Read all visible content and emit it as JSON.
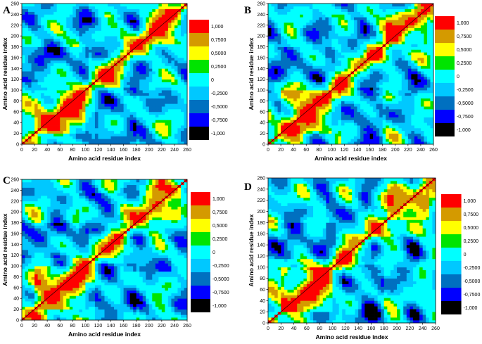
{
  "chart_data": [
    {
      "type": "heatmap",
      "panel_label": "A",
      "title": "",
      "xlabel": "Amino acid residue index",
      "ylabel": "Amino acid residue index",
      "xlim": [
        0,
        260
      ],
      "ylim": [
        0,
        260
      ],
      "x_ticks": [
        "0",
        "20",
        "40",
        "60",
        "80",
        "100",
        "120",
        "140",
        "160",
        "180",
        "200",
        "220",
        "240",
        "260"
      ],
      "y_ticks": [
        "0",
        "20",
        "40",
        "60",
        "80",
        "100",
        "120",
        "140",
        "160",
        "180",
        "200",
        "220",
        "240",
        "260"
      ],
      "legend_levels": [
        "1,000",
        "0,7500",
        "0,5000",
        "0,2500",
        "0",
        "-0,2500",
        "-0,5000",
        "-0,7500",
        "-1,000"
      ],
      "legend_colors": [
        "#ff0000",
        "#d49a00",
        "#ffff00",
        "#00e400",
        "#00ffff",
        "#00c8ff",
        "#0070c0",
        "#0000ff",
        "#000000"
      ],
      "variant": 1
    },
    {
      "type": "heatmap",
      "panel_label": "B",
      "title": "",
      "xlabel": "Amino acid residue index",
      "ylabel": "Amino acid residue index",
      "xlim": [
        0,
        260
      ],
      "ylim": [
        0,
        260
      ],
      "x_ticks": [
        "0",
        "20",
        "40",
        "60",
        "80",
        "100",
        "120",
        "140",
        "160",
        "180",
        "200",
        "220",
        "240",
        "260"
      ],
      "y_ticks": [
        "0",
        "20",
        "40",
        "60",
        "80",
        "100",
        "120",
        "140",
        "160",
        "180",
        "200",
        "220",
        "240",
        "260"
      ],
      "legend_levels": [
        "1,000",
        "0,7500",
        "0,5000",
        "0,2500",
        "0",
        "-0,2500",
        "-0,5000",
        "-0,7500",
        "-1,000"
      ],
      "legend_colors": [
        "#ff0000",
        "#d49a00",
        "#ffff00",
        "#00e400",
        "#00ffff",
        "#00c8ff",
        "#0070c0",
        "#0000ff",
        "#000000"
      ],
      "variant": 2
    },
    {
      "type": "heatmap",
      "panel_label": "C",
      "title": "",
      "xlabel": "Amino acid residue index",
      "ylabel": "Amino acid residue index",
      "xlim": [
        0,
        260
      ],
      "ylim": [
        0,
        260
      ],
      "x_ticks": [
        "0",
        "20",
        "40",
        "60",
        "80",
        "100",
        "120",
        "140",
        "160",
        "180",
        "200",
        "220",
        "240",
        "260"
      ],
      "y_ticks": [
        "0",
        "20",
        "40",
        "60",
        "80",
        "100",
        "120",
        "140",
        "160",
        "180",
        "200",
        "220",
        "240",
        "260"
      ],
      "legend_levels": [
        "1,000",
        "0,7500",
        "0,5000",
        "0,2500",
        "0",
        "-0,2500",
        "-0,5000",
        "-0,7500",
        "-1,000"
      ],
      "legend_colors": [
        "#ff0000",
        "#d49a00",
        "#ffff00",
        "#00e400",
        "#00ffff",
        "#00c8ff",
        "#0070c0",
        "#0000ff",
        "#000000"
      ],
      "variant": 3
    },
    {
      "type": "heatmap",
      "panel_label": "D",
      "title": "",
      "xlabel": "Amino acid residue index",
      "ylabel": "Amino acid residue index",
      "xlim": [
        0,
        260
      ],
      "ylim": [
        0,
        260
      ],
      "x_ticks": [
        "0",
        "20",
        "40",
        "60",
        "80",
        "100",
        "120",
        "140",
        "160",
        "180",
        "200",
        "220",
        "240",
        "260"
      ],
      "y_ticks": [
        "0",
        "20",
        "40",
        "60",
        "80",
        "100",
        "120",
        "140",
        "160",
        "180",
        "200",
        "220",
        "240",
        "260"
      ],
      "legend_levels": [
        "1,000",
        "0,7500",
        "0,5000",
        "0,2500",
        "0",
        "-0,2500",
        "-0,5000",
        "-0,7500",
        "-1,000"
      ],
      "legend_colors": [
        "#ff0000",
        "#d49a00",
        "#ffff00",
        "#00e400",
        "#00ffff",
        "#00c8ff",
        "#0070c0",
        "#0000ff",
        "#000000"
      ],
      "variant": 4
    }
  ]
}
